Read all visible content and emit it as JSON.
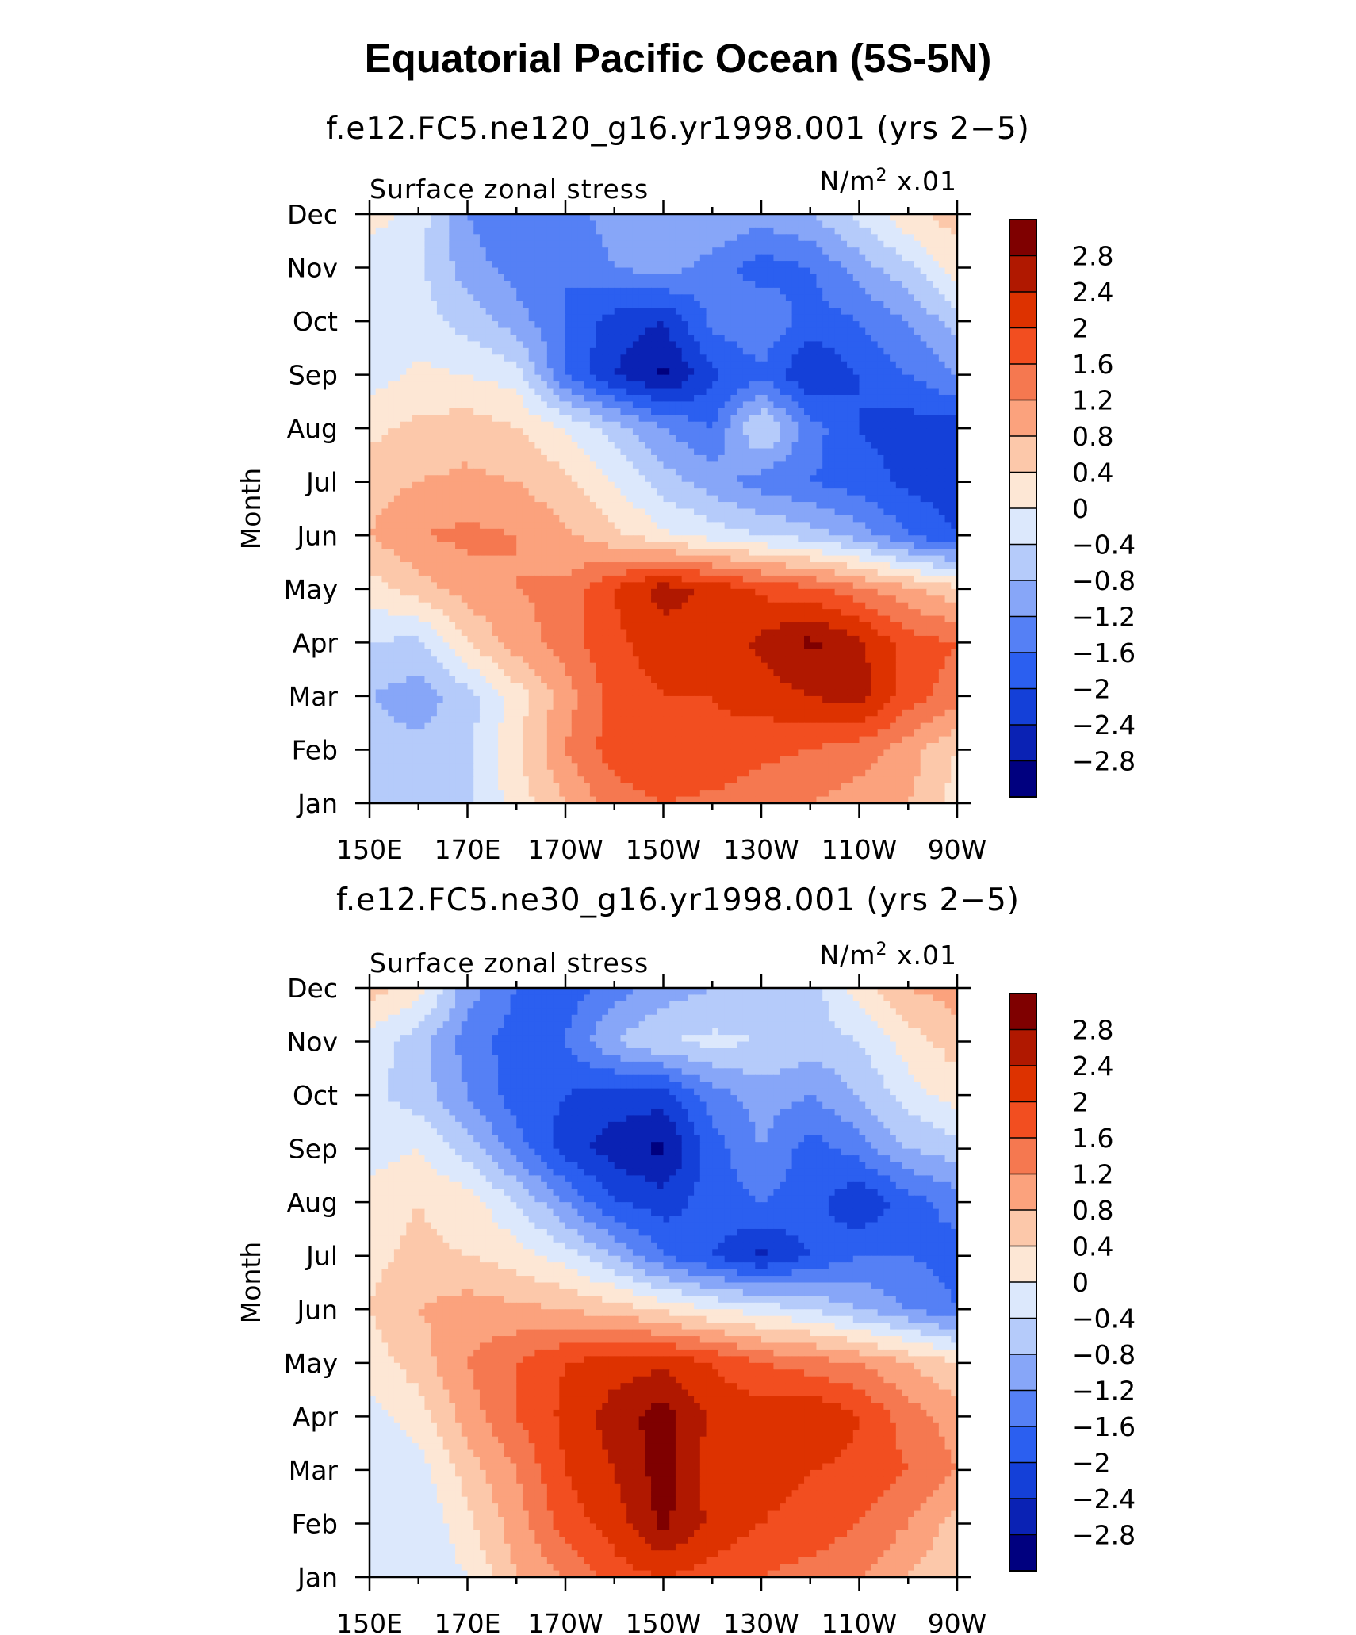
{
  "title": "Equatorial Pacific Ocean (5S-5N)",
  "chart_data": [
    {
      "type": "heatmap",
      "run_title": "f.e12.FC5.ne120_g16.yr1998.001 (yrs 2−5)",
      "left_label": "Surface zonal stress",
      "units_label": "N/m",
      "units_exp": "2",
      "units_scale": " x.01",
      "ylabel": "Month",
      "xlabel": "",
      "x_ticks": [
        "150E",
        "170E",
        "170W",
        "150W",
        "130W",
        "110W",
        "90W"
      ],
      "x_lon": [
        150,
        170,
        190,
        210,
        230,
        250,
        270
      ],
      "xlim": [
        150,
        270
      ],
      "y_ticks": [
        "Jan",
        "Feb",
        "Mar",
        "Apr",
        "May",
        "Jun",
        "Jul",
        "Aug",
        "Sep",
        "Oct",
        "Nov",
        "Dec"
      ],
      "colorbar_labels": [
        "2.8",
        "2.4",
        "2",
        "1.6",
        "1.2",
        "0.8",
        "0.4",
        "0",
        "−0.4",
        "−0.8",
        "−1.2",
        "−1.6",
        "−2",
        "−2.4",
        "−2.8"
      ],
      "levels": [
        -2.8,
        -2.4,
        -2.0,
        -1.6,
        -1.2,
        -0.8,
        -0.4,
        0,
        0.4,
        0.8,
        1.2,
        1.6,
        2.0,
        2.4,
        2.8
      ],
      "colors": [
        "#00007f",
        "#0a22b4",
        "#1440d8",
        "#2b5ff0",
        "#5580f5",
        "#87a6f8",
        "#b5cbfa",
        "#dce8fc",
        "#fde7d5",
        "#fcc8aa",
        "#fba27d",
        "#f57850",
        "#f24e20",
        "#dd3200",
        "#b01800",
        "#7f0000"
      ],
      "grid": {
        "x": [
          150,
          160,
          170,
          180,
          190,
          200,
          210,
          220,
          230,
          240,
          250,
          260,
          270
        ],
        "z": [
          [
            -0.6,
            -0.7,
            -0.5,
            0.2,
            0.8,
            1.4,
            1.6,
            1.5,
            1.4,
            1.2,
            1.0,
            0.8,
            0.2
          ],
          [
            -0.6,
            -0.7,
            -0.5,
            0.3,
            1.2,
            1.8,
            2.0,
            1.9,
            1.7,
            1.6,
            1.4,
            1.0,
            0.4
          ],
          [
            -0.8,
            -1.0,
            -0.6,
            0.2,
            1.0,
            1.8,
            2.0,
            2.0,
            2.2,
            2.4,
            2.6,
            1.8,
            1.4
          ],
          [
            -0.4,
            -0.5,
            0.4,
            1.0,
            1.4,
            1.9,
            2.2,
            2.1,
            2.5,
            2.9,
            2.5,
            1.8,
            1.6
          ],
          [
            0.2,
            0.6,
            1.0,
            1.2,
            1.3,
            2.0,
            2.6,
            2.3,
            1.9,
            1.7,
            1.3,
            0.9,
            0.5
          ],
          [
            0.8,
            1.2,
            1.3,
            1.2,
            0.9,
            0.5,
            0.1,
            -0.2,
            -0.4,
            -0.6,
            -1.0,
            -1.6,
            -2.0
          ],
          [
            0.6,
            0.8,
            0.9,
            0.8,
            0.5,
            0.0,
            -0.6,
            -1.0,
            -1.4,
            -1.6,
            -1.8,
            -2.1,
            -2.2
          ],
          [
            0.3,
            0.5,
            0.6,
            0.4,
            0.0,
            -0.6,
            -1.2,
            -1.6,
            -0.3,
            -1.4,
            -2.0,
            -2.2,
            -2.2
          ],
          [
            -0.2,
            0.1,
            0.0,
            -0.2,
            -1.6,
            -2.4,
            -2.9,
            -2.1,
            -1.7,
            -2.4,
            -2.0,
            -1.6,
            -1.2
          ],
          [
            -0.4,
            -0.2,
            -0.6,
            -1.0,
            -1.6,
            -2.2,
            -2.4,
            -1.5,
            -1.2,
            -1.8,
            -1.6,
            -1.2,
            -0.6
          ],
          [
            -0.3,
            -0.3,
            -1.0,
            -1.4,
            -1.6,
            -1.2,
            -1.0,
            -1.4,
            -1.8,
            -1.6,
            -1.0,
            -0.5,
            0.2
          ],
          [
            0.2,
            -0.2,
            -1.2,
            -1.6,
            -1.4,
            -1.0,
            -0.8,
            -0.8,
            -1.0,
            -0.8,
            -0.3,
            0.3,
            0.6
          ]
        ]
      }
    },
    {
      "type": "heatmap",
      "run_title": "f.e12.FC5.ne30_g16.yr1998.001 (yrs 2−5)",
      "left_label": "Surface zonal stress",
      "units_label": "N/m",
      "units_exp": "2",
      "units_scale": " x.01",
      "ylabel": "Month",
      "xlabel": "",
      "x_ticks": [
        "150E",
        "170E",
        "170W",
        "150W",
        "130W",
        "110W",
        "90W"
      ],
      "x_lon": [
        150,
        170,
        190,
        210,
        230,
        250,
        270
      ],
      "xlim": [
        150,
        270
      ],
      "y_ticks": [
        "Jan",
        "Feb",
        "Mar",
        "Apr",
        "May",
        "Jun",
        "Jul",
        "Aug",
        "Sep",
        "Oct",
        "Nov",
        "Dec"
      ],
      "colorbar_labels": [
        "2.8",
        "2.4",
        "2",
        "1.6",
        "1.2",
        "0.8",
        "0.4",
        "0",
        "−0.4",
        "−0.8",
        "−1.2",
        "−1.6",
        "−2",
        "−2.4",
        "−2.8"
      ],
      "levels": [
        -2.8,
        -2.4,
        -2.0,
        -1.6,
        -1.2,
        -0.8,
        -0.4,
        0,
        0.4,
        0.8,
        1.2,
        1.6,
        2.0,
        2.4,
        2.8
      ],
      "colors": [
        "#00007f",
        "#0a22b4",
        "#1440d8",
        "#2b5ff0",
        "#5580f5",
        "#87a6f8",
        "#b5cbfa",
        "#dce8fc",
        "#fde7d5",
        "#fcc8aa",
        "#fba27d",
        "#f57850",
        "#f24e20",
        "#dd3200",
        "#b01800",
        "#7f0000"
      ],
      "grid": {
        "x": [
          150,
          160,
          170,
          180,
          190,
          200,
          210,
          220,
          230,
          240,
          250,
          260,
          270
        ],
        "z": [
          [
            -0.2,
            -0.4,
            0.0,
            0.8,
            1.2,
            1.8,
            2.0,
            1.8,
            1.6,
            1.4,
            1.2,
            0.8,
            0.4
          ],
          [
            -0.4,
            -0.4,
            0.3,
            1.0,
            1.8,
            2.2,
            2.9,
            2.3,
            2.0,
            1.9,
            1.6,
            1.2,
            0.6
          ],
          [
            -0.4,
            -0.2,
            0.6,
            1.2,
            2.0,
            2.4,
            3.0,
            2.2,
            2.1,
            2.0,
            1.9,
            1.6,
            1.2
          ],
          [
            -0.2,
            0.2,
            1.0,
            1.6,
            2.1,
            2.6,
            3.0,
            2.3,
            2.2,
            2.4,
            2.0,
            1.4,
            1.0
          ],
          [
            0.2,
            0.6,
            1.2,
            1.6,
            2.0,
            2.2,
            2.3,
            2.0,
            1.6,
            1.4,
            1.2,
            0.8,
            0.4
          ],
          [
            0.4,
            0.8,
            1.0,
            0.9,
            0.8,
            0.6,
            0.3,
            0.0,
            -0.2,
            -0.4,
            -0.8,
            -1.2,
            -1.6
          ],
          [
            0.3,
            0.5,
            0.4,
            0.2,
            -0.2,
            -0.8,
            -1.6,
            -2.0,
            -2.5,
            -2.0,
            -1.6,
            -1.6,
            -1.8
          ],
          [
            0.2,
            0.4,
            0.2,
            -0.4,
            -1.2,
            -2.0,
            -2.2,
            -1.8,
            -1.6,
            -1.8,
            -2.4,
            -1.8,
            -1.4
          ],
          [
            -0.2,
            0.0,
            -0.6,
            -1.4,
            -2.2,
            -2.6,
            -2.9,
            -1.8,
            -1.2,
            -1.8,
            -1.4,
            -0.8,
            -0.6
          ],
          [
            -0.3,
            -0.6,
            -1.2,
            -1.8,
            -2.0,
            -2.2,
            -2.2,
            -1.4,
            -1.0,
            -1.2,
            -0.8,
            -0.2,
            0.2
          ],
          [
            -0.2,
            -0.6,
            -1.4,
            -1.8,
            -1.6,
            -0.8,
            -0.4,
            -0.3,
            -0.4,
            -0.6,
            -0.4,
            0.2,
            0.6
          ],
          [
            0.6,
            0.2,
            -1.0,
            -1.6,
            -1.8,
            -1.4,
            -1.0,
            -0.8,
            -0.8,
            -0.6,
            0.2,
            0.8,
            1.0
          ]
        ]
      }
    }
  ]
}
